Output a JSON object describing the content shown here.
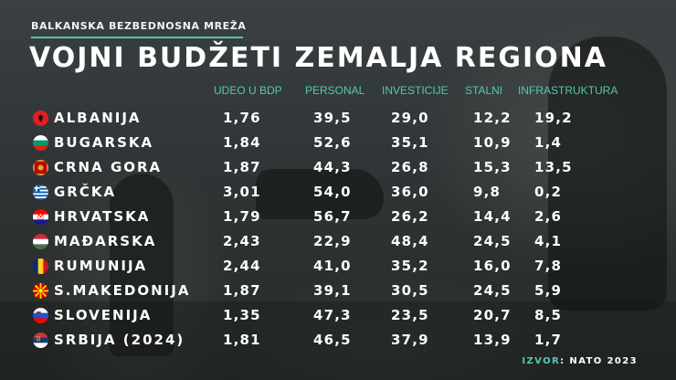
{
  "header": {
    "organization": "BALKANSKA BEZBEDNOSNA MREŽA",
    "title": "VOJNI BUDŽETI ZEMALJA REGIONA"
  },
  "source": {
    "label": "IZVOR",
    "value": ": NATO 2023"
  },
  "chart_data": {
    "type": "table",
    "columns": [
      "UDEO U BDP",
      "PERSONAL",
      "INVESTICIJE",
      "STALNI",
      "INFRASTRUKTURA"
    ],
    "rows": [
      {
        "country": "ALBANIJA",
        "flag": "albania-flag-icon",
        "values": [
          "1,76",
          "39,5",
          "29,0",
          "12,2",
          "19,2"
        ]
      },
      {
        "country": "BUGARSKA",
        "flag": "bulgaria-flag-icon",
        "values": [
          "1,84",
          "52,6",
          "35,1",
          "10,9",
          "1,4"
        ]
      },
      {
        "country": "CRNA GORA",
        "flag": "montenegro-flag-icon",
        "values": [
          "1,87",
          "44,3",
          "26,8",
          "15,3",
          "13,5"
        ]
      },
      {
        "country": "GRČKA",
        "flag": "greece-flag-icon",
        "values": [
          "3,01",
          "54,0",
          "36,0",
          "9,8",
          "0,2"
        ]
      },
      {
        "country": "HRVATSKA",
        "flag": "croatia-flag-icon",
        "values": [
          "1,79",
          "56,7",
          "26,2",
          "14,4",
          "2,6"
        ]
      },
      {
        "country": "MAĐARSKA",
        "flag": "hungary-flag-icon",
        "values": [
          "2,43",
          "22,9",
          "48,4",
          "24,5",
          "4,1"
        ]
      },
      {
        "country": "RUMUNIJA",
        "flag": "romania-flag-icon",
        "values": [
          "2,44",
          "41,0",
          "35,2",
          "16,0",
          "7,8"
        ]
      },
      {
        "country": "S.MAKEDONIJA",
        "flag": "north-macedonia-flag-icon",
        "values": [
          "1,87",
          "39,1",
          "30,5",
          "24,5",
          "5,9"
        ]
      },
      {
        "country": "SLOVENIJA",
        "flag": "slovenia-flag-icon",
        "values": [
          "1,35",
          "47,3",
          "23,5",
          "20,7",
          "8,5"
        ]
      },
      {
        "country": "SRBIJA (2024)",
        "flag": "serbia-flag-icon",
        "values": [
          "1,81",
          "46,5",
          "37,9",
          "13,9",
          "1,7"
        ]
      }
    ]
  },
  "colors": {
    "accent": "#52c9b2",
    "rule": "#4ec9a0",
    "text": "#ffffff"
  }
}
